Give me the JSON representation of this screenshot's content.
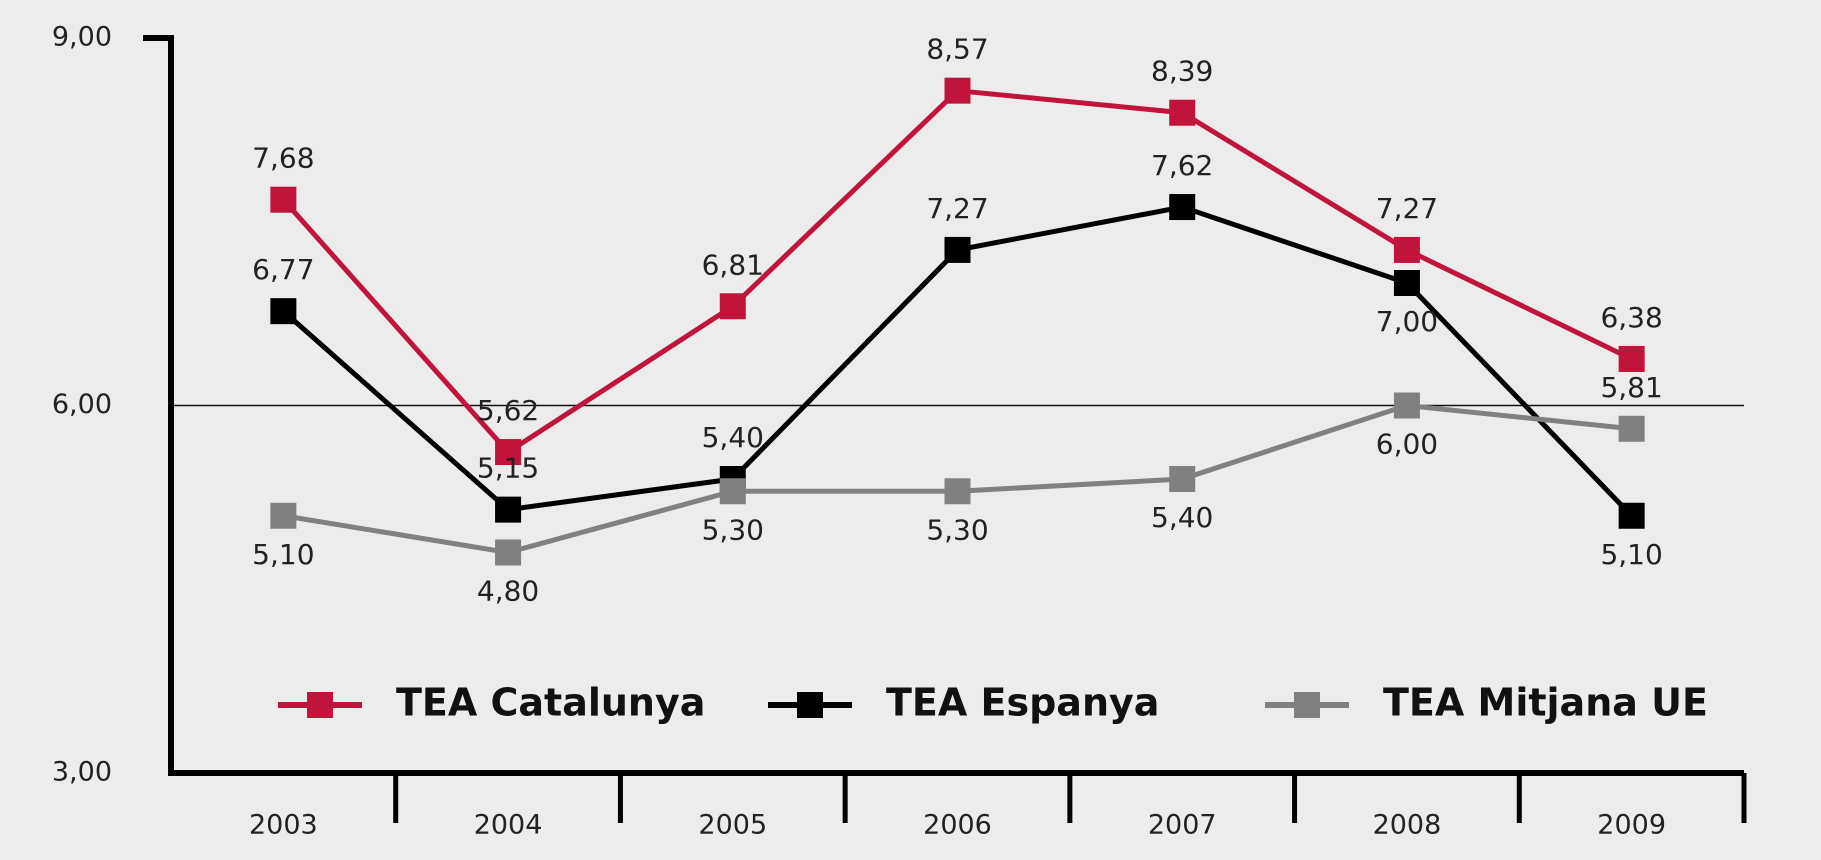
{
  "chart_data": {
    "type": "line",
    "categories": [
      "2003",
      "2004",
      "2005",
      "2006",
      "2007",
      "2008",
      "2009"
    ],
    "series": [
      {
        "name": "TEA Catalunya",
        "color": "#c0143c",
        "values": [
          7.68,
          5.62,
          6.81,
          8.57,
          8.39,
          7.27,
          6.38
        ],
        "value_labels": [
          "7,68",
          "5,62",
          "6,81",
          "8,57",
          "8,39",
          "7,27",
          "6,38"
        ]
      },
      {
        "name": "TEA Espanya",
        "color": "#000000",
        "values": [
          6.77,
          5.15,
          5.4,
          7.27,
          7.62,
          7.0,
          5.1
        ],
        "value_labels": [
          "6,77",
          "5,15",
          "5,40",
          "7,27",
          "7,62",
          "7,00",
          "5,10"
        ]
      },
      {
        "name": "TEA Mitjana UE",
        "color": "#808080",
        "values": [
          5.1,
          4.8,
          5.3,
          5.3,
          5.4,
          6.0,
          5.81
        ],
        "value_labels": [
          "5,10",
          "4,80",
          "5,30",
          "5,30",
          "5,40",
          "6,00",
          "5,81"
        ]
      }
    ],
    "ylim": [
      3,
      9
    ],
    "yticks": [
      {
        "value": 3,
        "label": "3,00"
      },
      {
        "value": 6,
        "label": "6,00"
      },
      {
        "value": 9,
        "label": "9,00"
      }
    ],
    "grid": true
  }
}
